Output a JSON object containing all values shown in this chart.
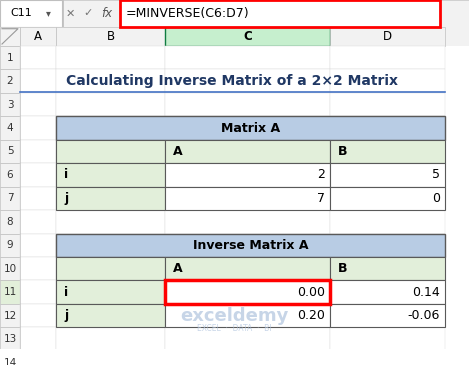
{
  "title": "Calculating Inverse Matrix of a 2×2 Matrix",
  "formula_bar_cell": "C11",
  "formula_bar_formula": "=MINVERSE(C6:D7)",
  "matrix_a_title": "Matrix A",
  "matrix_a_row_headers": [
    "i",
    "j"
  ],
  "matrix_a_data": [
    [
      2,
      5
    ],
    [
      7,
      0
    ]
  ],
  "matrix_inv_title": "Inverse Matrix A",
  "matrix_inv_row_headers": [
    "i",
    "j"
  ],
  "matrix_inv_data": [
    [
      "0.00",
      "0.14"
    ],
    [
      "0.20",
      "-0.06"
    ]
  ],
  "header_bg": "#b8cce4",
  "cell_light_green": "#e2efda",
  "title_color": "#203864",
  "title_underline_color": "#4472c4",
  "border_dark": "#595959",
  "watermark_color": "#b0c4de"
}
